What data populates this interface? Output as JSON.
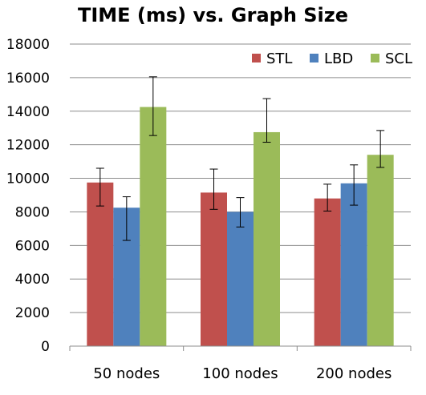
{
  "chart_data": {
    "type": "bar",
    "title": "TIME (ms) vs. Graph Size",
    "xlabel": "",
    "ylabel": "",
    "categories": [
      "50 nodes",
      "100 nodes",
      "200 nodes"
    ],
    "ylim": [
      0,
      18000
    ],
    "yticks": [
      0,
      2000,
      4000,
      6000,
      8000,
      10000,
      12000,
      14000,
      16000,
      18000
    ],
    "grid": true,
    "legend_position": "top-right",
    "series": [
      {
        "name": "STL",
        "color": "#c0504d",
        "values": [
          9750,
          9150,
          8800
        ],
        "error_low": [
          8350,
          8150,
          8050
        ],
        "error_high": [
          10600,
          10550,
          9650
        ]
      },
      {
        "name": "LBD",
        "color": "#4f81bd",
        "values": [
          8250,
          8000,
          9700
        ],
        "error_low": [
          6300,
          7100,
          8400
        ],
        "error_high": [
          8900,
          8850,
          10800
        ]
      },
      {
        "name": "SCL",
        "color": "#9bbb59",
        "values": [
          14250,
          12750,
          11400
        ],
        "error_low": [
          12550,
          12150,
          10650
        ],
        "error_high": [
          16050,
          14750,
          12850
        ]
      }
    ]
  }
}
